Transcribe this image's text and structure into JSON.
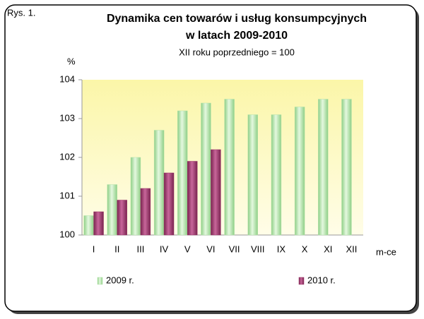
{
  "chart_data": {
    "type": "bar",
    "figure_label": "Rys. 1.",
    "title": [
      "Dynamika cen towarów i usług konsumpcyjnych",
      "w latach 2009-2010"
    ],
    "subtitle": "XII roku poprzedniego = 100",
    "ylabel": "%",
    "xlabel": "m-ce",
    "categories": [
      "I",
      "II",
      "III",
      "IV",
      "V",
      "VI",
      "VII",
      "VIII",
      "IX",
      "X",
      "XI",
      "XII"
    ],
    "series": [
      {
        "name": "2009 r.",
        "color": "#b5e3ac",
        "values": [
          100.5,
          101.3,
          102.0,
          102.7,
          103.2,
          103.4,
          103.5,
          103.1,
          103.1,
          103.3,
          103.5,
          103.5
        ]
      },
      {
        "name": "2010 r.",
        "color": "#993366",
        "values": [
          100.6,
          100.9,
          101.2,
          101.6,
          101.9,
          102.2,
          null,
          null,
          null,
          null,
          null,
          null
        ]
      }
    ],
    "ylim": [
      100,
      104
    ],
    "yticks": [
      100,
      101,
      102,
      103,
      104
    ],
    "grid": false,
    "legend": "bottom"
  }
}
